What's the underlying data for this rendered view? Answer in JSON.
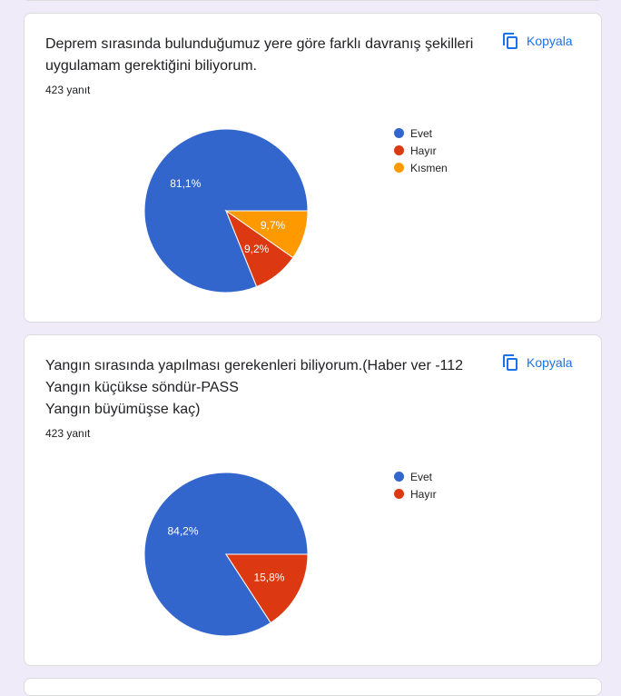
{
  "questions": [
    {
      "title": "Deprem sırasında bulunduğumuz yere göre farklı davranış şekilleri\nuygulamam gerektiğini biliyorum.",
      "responses": "423 yanıt",
      "copy_label": "Kopyala",
      "chart_data": {
        "type": "pie",
        "categories": [
          "Evet",
          "Hayır",
          "Kısmen"
        ],
        "values": [
          81.1,
          9.2,
          9.7
        ],
        "labels": [
          "81,1%",
          "9,2%",
          "9,7%"
        ],
        "colors": [
          "#3366cc",
          "#dc3912",
          "#ff9900"
        ],
        "legend": "right"
      }
    },
    {
      "title": "Yangın sırasında yapılması gerekenleri biliyorum.(Haber ver -112\nYangın küçükse söndür-PASS\nYangın büyümüşse kaç)",
      "responses": "423 yanıt",
      "copy_label": "Kopyala",
      "chart_data": {
        "type": "pie",
        "categories": [
          "Evet",
          "Hayır"
        ],
        "values": [
          84.2,
          15.8
        ],
        "labels": [
          "84,2%",
          "15,8%"
        ],
        "colors": [
          "#3366cc",
          "#dc3912"
        ],
        "legend": "right"
      }
    }
  ]
}
